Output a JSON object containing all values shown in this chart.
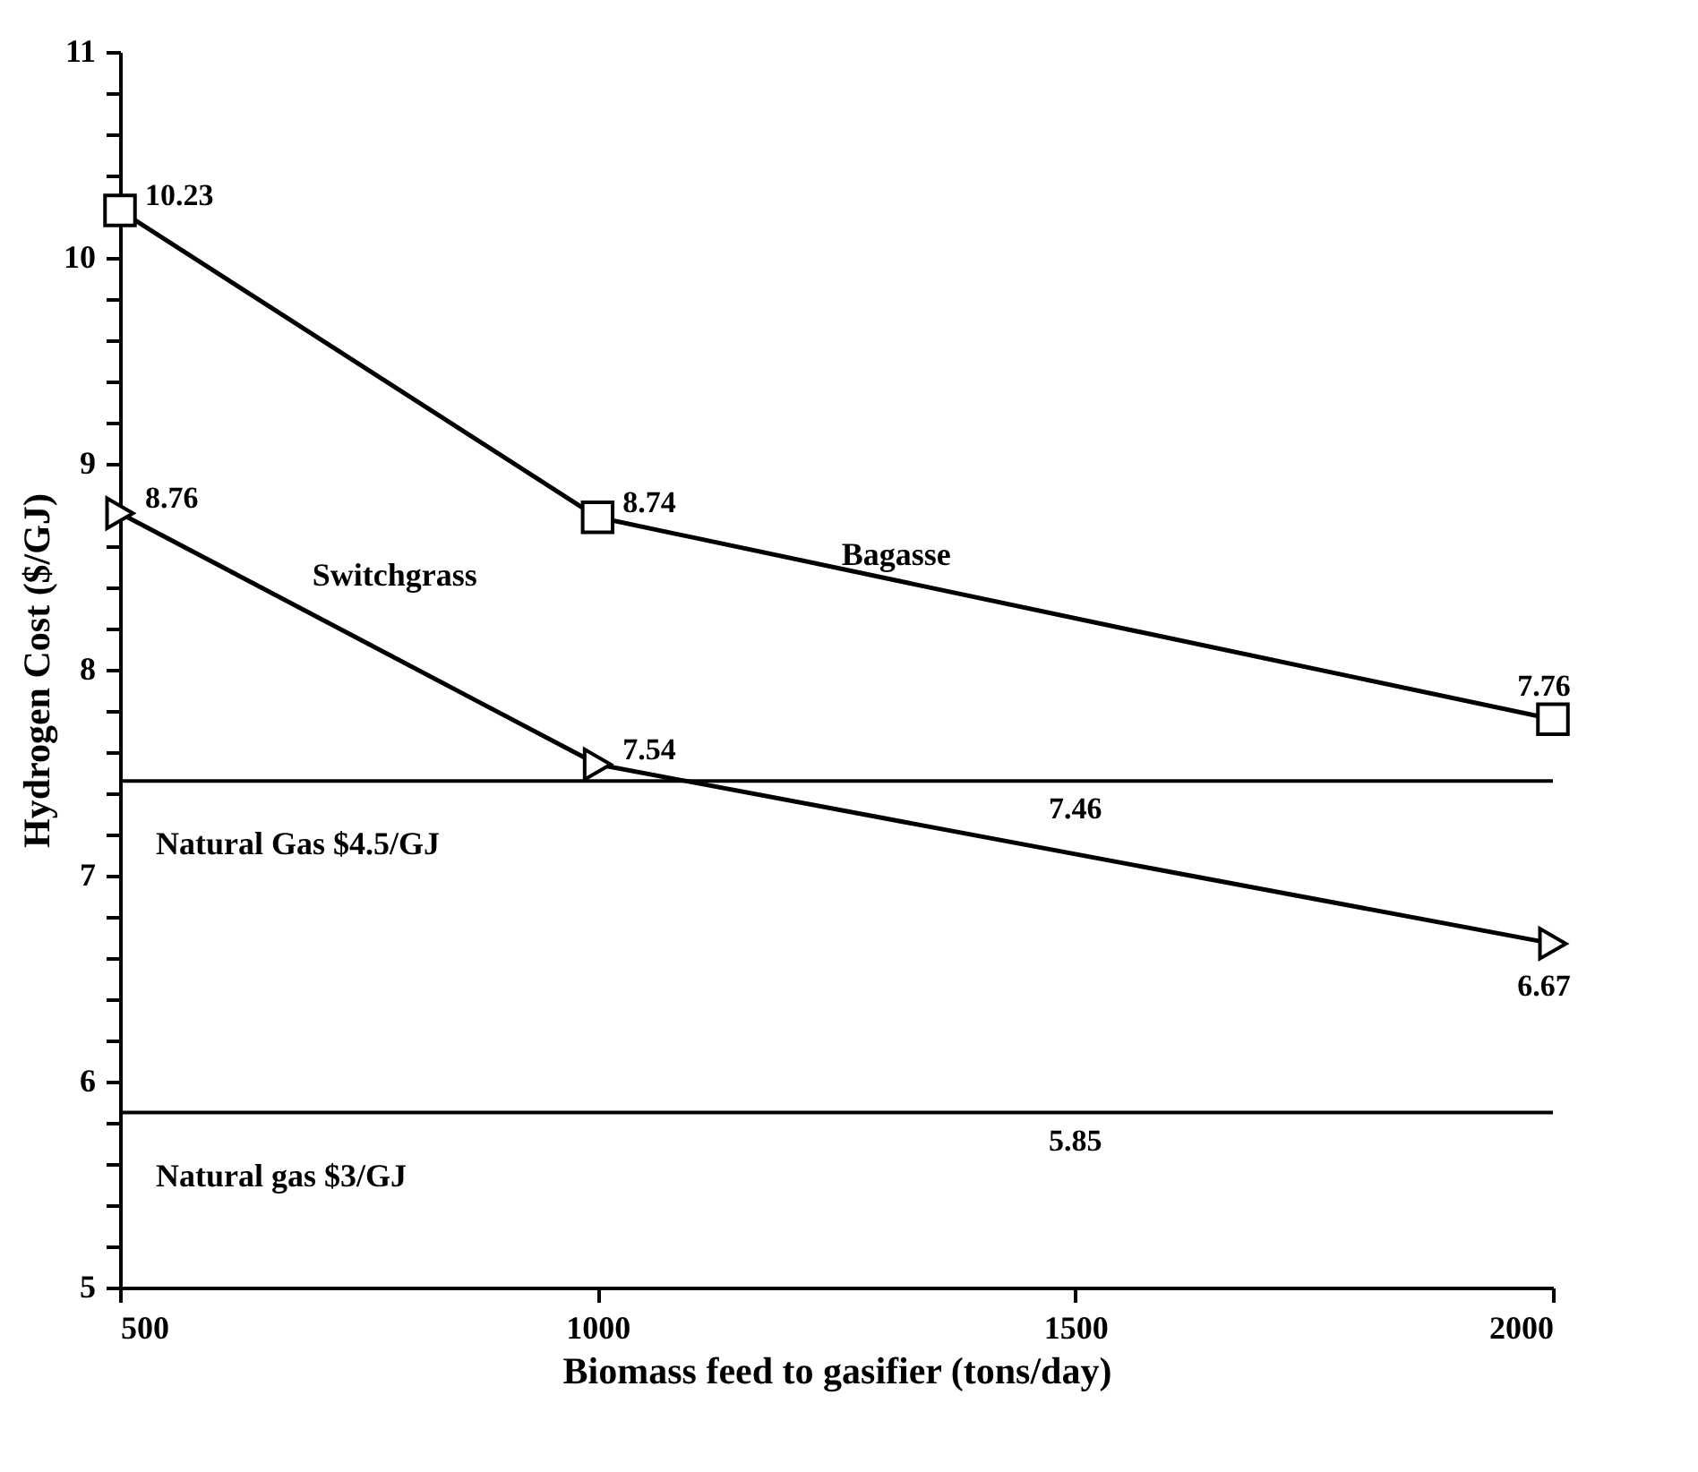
{
  "chart_data": {
    "type": "line",
    "xlabel": "Biomass feed to gasifier (tons/day)",
    "ylabel": "Hydrogen Cost ($/GJ)",
    "x": [
      500,
      1000,
      2000
    ],
    "series": [
      {
        "name": "Bagasse",
        "color": "#000000",
        "marker": "square",
        "values": [
          10.23,
          8.74,
          7.76
        ]
      },
      {
        "name": "Switchgrass",
        "color": "#000000",
        "marker": "triangle",
        "values": [
          8.76,
          7.54,
          6.67
        ]
      }
    ],
    "xlim": [
      500,
      2000
    ],
    "xticks": [
      500,
      1000,
      1500,
      2000
    ],
    "ylim": [
      5,
      11
    ],
    "yticks": [
      5,
      {
        "value": 5.2,
        "label": null
      },
      {
        "value": 5.4,
        "label": null
      },
      {
        "value": 5.6,
        "label": null
      },
      {
        "value": 5.8,
        "label": null
      },
      6,
      {
        "value": 6.2,
        "label": null
      },
      {
        "value": 6.4,
        "label": null
      },
      {
        "value": 6.6,
        "label": null
      },
      {
        "value": 6.8,
        "label": null
      },
      7,
      {
        "value": 7.2,
        "label": null
      },
      {
        "value": 7.4,
        "label": null
      },
      {
        "value": 7.6,
        "label": null
      },
      {
        "value": 7.8,
        "label": null
      },
      8,
      {
        "value": 8.2,
        "label": null
      },
      {
        "value": 8.4,
        "label": null
      },
      {
        "value": 8.6,
        "label": null
      },
      {
        "value": 8.8,
        "label": null
      },
      9,
      {
        "value": 9.2,
        "label": null
      },
      {
        "value": 9.4,
        "label": null
      },
      {
        "value": 9.6,
        "label": null
      },
      {
        "value": 9.8,
        "label": null
      },
      10,
      {
        "value": 10.2,
        "label": null
      },
      {
        "value": 10.4,
        "label": null
      },
      {
        "value": 10.6,
        "label": null
      },
      {
        "value": 10.8,
        "label": null
      },
      11
    ],
    "ref_lines": [
      {
        "axis": "y",
        "value": 7.46,
        "label": "Natural Gas $4.5/GJ",
        "color": "#000000",
        "line_style": "solid"
      },
      {
        "axis": "y",
        "value": 5.85,
        "label": "Natural gas $3/GJ",
        "color": "#000000",
        "line_style": "solid"
      }
    ],
    "annotations": [
      {
        "text": "7.46",
        "x": 1500,
        "y": 7.46
      },
      {
        "text": "5.85",
        "x": 1500,
        "y": 5.85
      }
    ],
    "data_labels": true,
    "grid": false,
    "line_style": "solid"
  }
}
